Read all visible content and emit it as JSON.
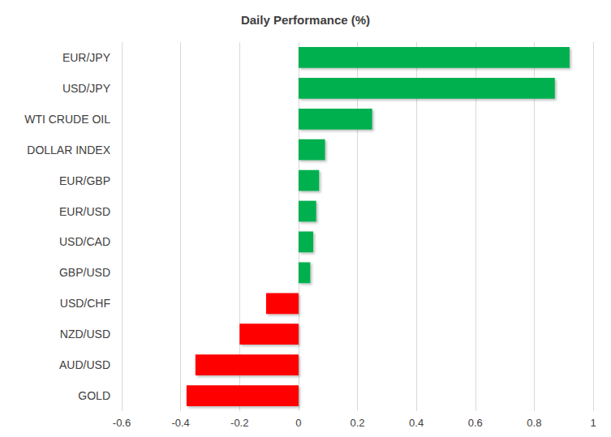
{
  "chart_data": {
    "type": "bar",
    "title": "Daily Performance (%)",
    "orientation": "horizontal",
    "categories": [
      "EUR/JPY",
      "USD/JPY",
      "WTI CRUDE OIL",
      "DOLLAR INDEX",
      "EUR/GBP",
      "EUR/USD",
      "USD/CAD",
      "GBP/USD",
      "USD/CHF",
      "NZD/USD",
      "AUD/USD",
      "GOLD"
    ],
    "values": [
      0.92,
      0.87,
      0.25,
      0.09,
      0.07,
      0.06,
      0.05,
      0.04,
      -0.11,
      -0.2,
      -0.35,
      -0.38
    ],
    "colors": [
      "#00b050",
      "#00b050",
      "#00b050",
      "#00b050",
      "#00b050",
      "#00b050",
      "#00b050",
      "#00b050",
      "#ff0000",
      "#ff0000",
      "#ff0000",
      "#ff0000"
    ],
    "xlim": [
      -0.6,
      1
    ],
    "xticks": [
      -0.6,
      -0.4,
      -0.2,
      0,
      0.2,
      0.4,
      0.6,
      0.8,
      1
    ],
    "grid": true
  }
}
